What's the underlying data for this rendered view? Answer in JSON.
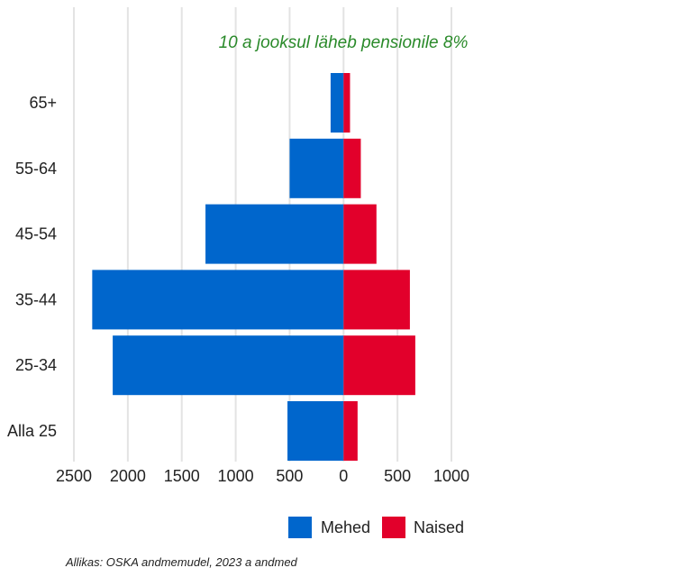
{
  "chart_data": {
    "type": "bar",
    "orientation": "horizontal-population-pyramid",
    "title": "",
    "annotation": "10 a jooksul läheb pensionile 8%",
    "categories": [
      "Alla 25",
      "25-34",
      "35-44",
      "45-54",
      "55-64",
      "65+"
    ],
    "series": [
      {
        "name": "Mehed",
        "color": "#0066cc",
        "values": [
          520,
          2140,
          2330,
          1280,
          500,
          120
        ]
      },
      {
        "name": "Naised",
        "color": "#e2002b",
        "values": [
          130,
          665,
          615,
          305,
          160,
          60
        ]
      }
    ],
    "x_ticks": [
      {
        "value": -2500,
        "label": "2500"
      },
      {
        "value": -2000,
        "label": "2000"
      },
      {
        "value": -1500,
        "label": "1500"
      },
      {
        "value": -1000,
        "label": "1000"
      },
      {
        "value": -500,
        "label": "500"
      },
      {
        "value": 0,
        "label": "0"
      },
      {
        "value": 500,
        "label": "500"
      },
      {
        "value": 1000,
        "label": "1000"
      }
    ],
    "xlim": [
      -2500,
      1000
    ],
    "grid": "vertical",
    "legend_position": "bottom",
    "annotation_color": "#2a8a2a"
  },
  "source_text": "Allikas: OSKA andmemudel, 2023 a andmed"
}
